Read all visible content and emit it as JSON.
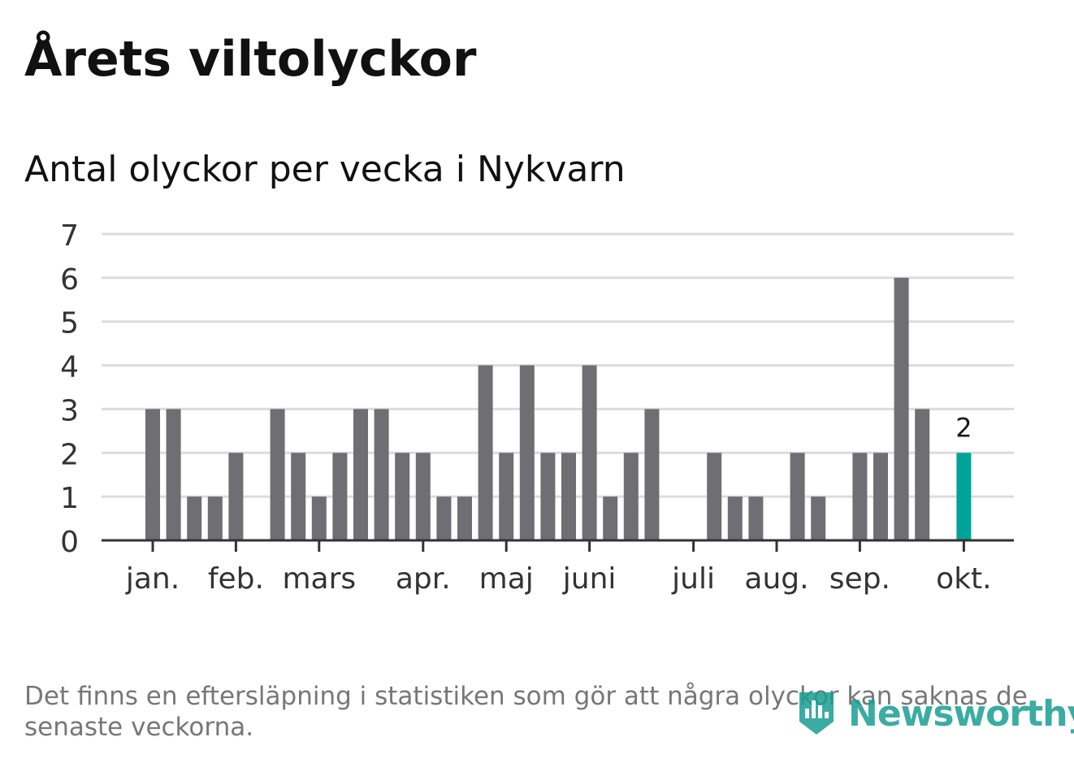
{
  "title": "Årets viltolyckor",
  "subtitle": "Antal olyckor per vecka i Nykvarn",
  "note": "Det finns en eftersläpning i statistiken som gör att några olyckor kan saknas de senaste veckorna.",
  "brand": "Newsworthy",
  "colors": {
    "bar": "#6e6e73",
    "highlight": "#00a39a",
    "grid": "#dcdcdc",
    "axis": "#333333",
    "brand": "#1a9e92"
  },
  "chart_data": {
    "type": "bar",
    "ylim": [
      0,
      7
    ],
    "yticks": [
      0,
      1,
      2,
      3,
      4,
      5,
      6,
      7
    ],
    "grid": true,
    "weeks": [
      1,
      2,
      3,
      4,
      5,
      6,
      7,
      8,
      9,
      10,
      11,
      12,
      13,
      14,
      15,
      16,
      17,
      18,
      19,
      20,
      21,
      22,
      23,
      24,
      25,
      26,
      27,
      28,
      29,
      30,
      31,
      32,
      33,
      34,
      35,
      36,
      37,
      38,
      39,
      40,
      41,
      42
    ],
    "values": [
      3,
      3,
      1,
      1,
      2,
      0,
      3,
      2,
      1,
      2,
      3,
      3,
      2,
      2,
      1,
      1,
      4,
      2,
      4,
      2,
      2,
      4,
      1,
      2,
      3,
      0,
      0,
      2,
      1,
      1,
      0,
      2,
      1,
      0,
      2,
      2,
      6,
      3,
      0,
      2,
      null,
      null
    ],
    "highlight_index": 39,
    "highlight_label": "2",
    "month_labels": [
      {
        "label": "jan.",
        "week": 1
      },
      {
        "label": "feb.",
        "week": 5
      },
      {
        "label": "mars",
        "week": 9
      },
      {
        "label": "apr.",
        "week": 14
      },
      {
        "label": "maj",
        "week": 18
      },
      {
        "label": "juni",
        "week": 22
      },
      {
        "label": "juli",
        "week": 27
      },
      {
        "label": "aug.",
        "week": 31
      },
      {
        "label": "sep.",
        "week": 35
      },
      {
        "label": "okt.",
        "week": 40
      }
    ]
  }
}
